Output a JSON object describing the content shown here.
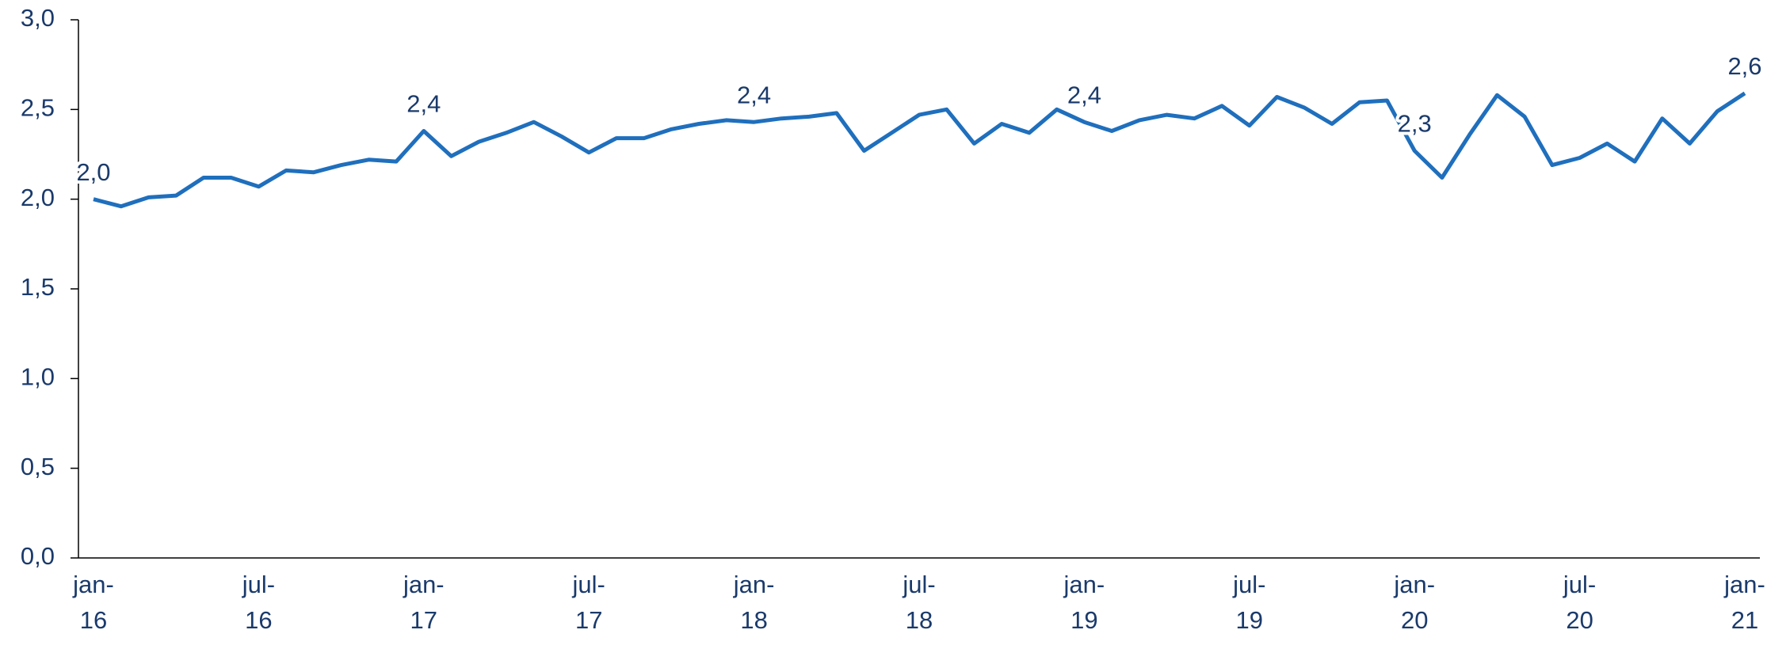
{
  "chart_data": {
    "type": "line",
    "categories": [
      "jan-16",
      null,
      null,
      null,
      null,
      null,
      "jul-16",
      null,
      null,
      null,
      null,
      null,
      "jan-17",
      null,
      null,
      null,
      null,
      null,
      "jul-17",
      null,
      null,
      null,
      null,
      null,
      "jan-18",
      null,
      null,
      null,
      null,
      null,
      "jul-18",
      null,
      null,
      null,
      null,
      null,
      "jan-19",
      null,
      null,
      null,
      null,
      null,
      "jul-19",
      null,
      null,
      null,
      null,
      null,
      "jan-20",
      null,
      null,
      null,
      null,
      null,
      "jul-20",
      null,
      null,
      null,
      null,
      null,
      "jan-21"
    ],
    "series": [
      {
        "name": null,
        "color": "#1f6fbd",
        "values": [
          2.0,
          1.96,
          2.01,
          2.02,
          2.12,
          2.12,
          2.07,
          2.16,
          2.15,
          2.19,
          2.22,
          2.21,
          2.38,
          2.24,
          2.32,
          2.37,
          2.43,
          2.35,
          2.26,
          2.34,
          2.34,
          2.39,
          2.42,
          2.44,
          2.43,
          2.45,
          2.46,
          2.48,
          2.27,
          2.37,
          2.47,
          2.5,
          2.31,
          2.42,
          2.37,
          2.5,
          2.43,
          2.38,
          2.44,
          2.47,
          2.45,
          2.52,
          2.41,
          2.57,
          2.51,
          2.42,
          2.54,
          2.55,
          2.27,
          2.12,
          2.36,
          2.58,
          2.46,
          2.19,
          2.23,
          2.31,
          2.21,
          2.45,
          2.31,
          2.49,
          2.59
        ],
        "value_labels": [
          "2,0",
          null,
          null,
          null,
          null,
          null,
          null,
          null,
          null,
          null,
          null,
          null,
          "2,4",
          null,
          null,
          null,
          null,
          null,
          null,
          null,
          null,
          null,
          null,
          null,
          "2,4",
          null,
          null,
          null,
          null,
          null,
          null,
          null,
          null,
          null,
          null,
          null,
          "2,4",
          null,
          null,
          null,
          null,
          null,
          null,
          null,
          null,
          null,
          null,
          null,
          "2,3",
          null,
          null,
          null,
          null,
          null,
          null,
          null,
          null,
          null,
          null,
          null,
          "2,6"
        ]
      }
    ],
    "ylim": [
      0,
      3
    ],
    "yticks": [
      {
        "value": 0,
        "label": "0,0"
      },
      {
        "value": 0.5,
        "label": "0,5"
      },
      {
        "value": 1,
        "label": "1,0"
      },
      {
        "value": 1.5,
        "label": "1,5"
      },
      {
        "value": 2,
        "label": "2,0"
      },
      {
        "value": 2.5,
        "label": "2,5"
      },
      {
        "value": 3,
        "label": "3,0"
      }
    ],
    "grid": false
  }
}
